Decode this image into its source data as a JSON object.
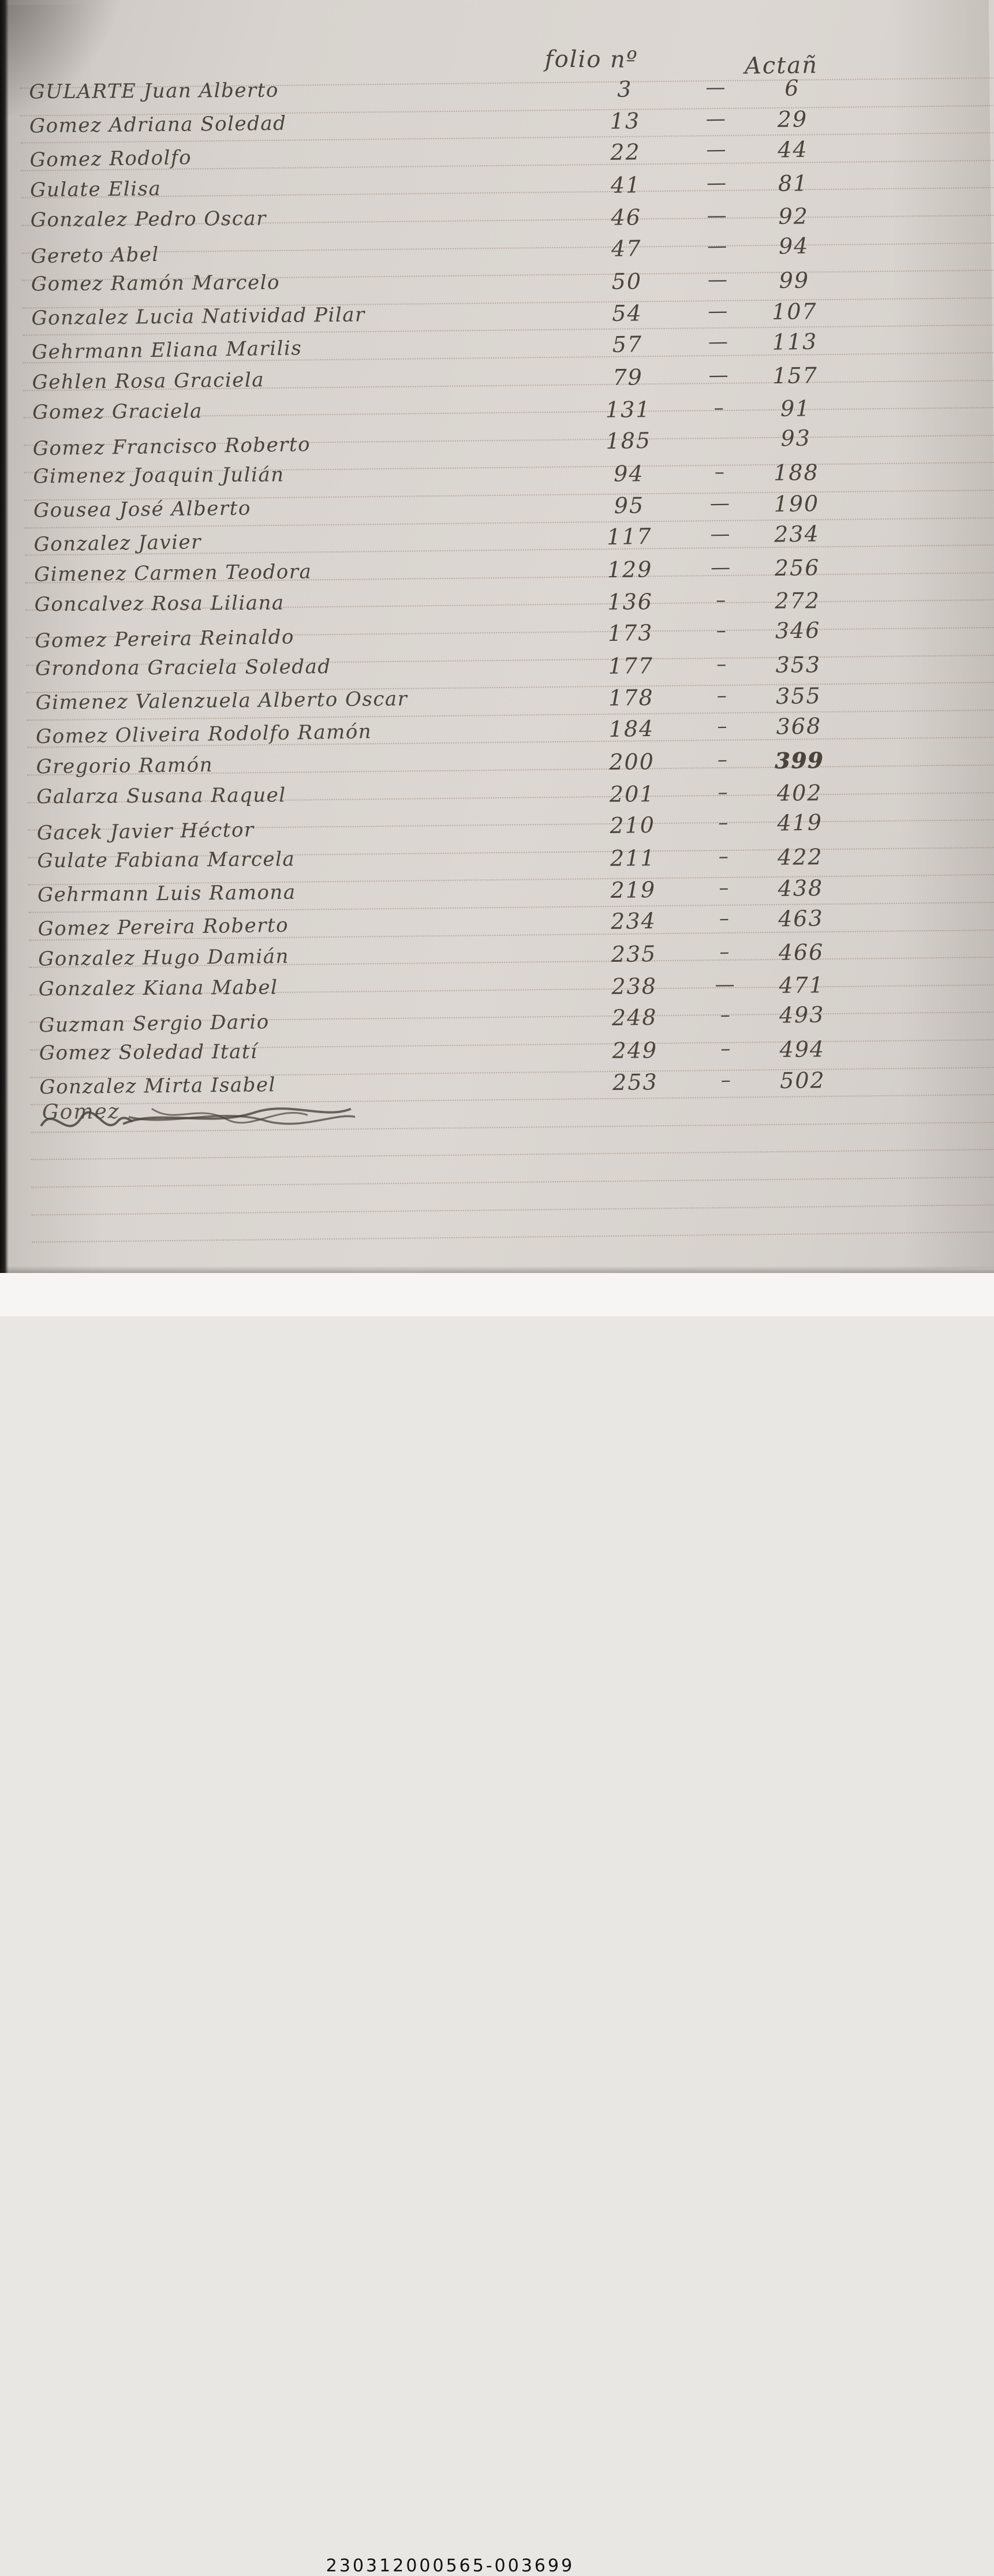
{
  "page": {
    "header": {
      "folio_label": "folio nº",
      "acta_label": "Actañ"
    },
    "entries": [
      {
        "name": "GULARTE Juan Alberto",
        "folio": "3",
        "dash": "—",
        "acta": "6"
      },
      {
        "name": "Gomez Adriana Soledad",
        "folio": "13",
        "dash": "—",
        "acta": "29"
      },
      {
        "name": "Gomez Rodolfo",
        "folio": "22",
        "dash": "—",
        "acta": "44"
      },
      {
        "name": "Gulate Elisa",
        "folio": "41",
        "dash": "—",
        "acta": "81"
      },
      {
        "name": "Gonzalez Pedro Oscar",
        "folio": "46",
        "dash": "—",
        "acta": "92"
      },
      {
        "name": "Gereto Abel",
        "folio": "47",
        "dash": "—",
        "acta": "94"
      },
      {
        "name": "Gomez Ramón Marcelo",
        "folio": "50",
        "dash": "—",
        "acta": "99"
      },
      {
        "name": "Gonzalez Lucia Natividad Pilar",
        "folio": "54",
        "dash": "—",
        "acta": "107"
      },
      {
        "name": "Gehrmann Eliana Marilis",
        "folio": "57",
        "dash": "—",
        "acta": "113"
      },
      {
        "name": "Gehlen Rosa Graciela",
        "folio": "79",
        "dash": "—",
        "acta": "157"
      },
      {
        "name": "Gomez Graciela",
        "folio": "131",
        "dash": "–",
        "acta": "91"
      },
      {
        "name": "Gomez Francisco Roberto",
        "folio": "185",
        "dash": "",
        "acta": "93"
      },
      {
        "name": "Gimenez Joaquin Julián",
        "folio": "94",
        "dash": "–",
        "acta": "188"
      },
      {
        "name": "Gousea José Alberto",
        "folio": "95",
        "dash": "—",
        "acta": "190"
      },
      {
        "name": "Gonzalez Javier",
        "folio": "117",
        "dash": "—",
        "acta": "234"
      },
      {
        "name": "Gimenez Carmen Teodora",
        "folio": "129",
        "dash": "—",
        "acta": "256"
      },
      {
        "name": "Goncalvez Rosa Liliana",
        "folio": "136",
        "dash": "–",
        "acta": "272"
      },
      {
        "name": "Gomez Pereira Reinaldo",
        "folio": "173",
        "dash": "–",
        "acta": "346"
      },
      {
        "name": "Grondona Graciela Soledad",
        "folio": "177",
        "dash": "–",
        "acta": "353"
      },
      {
        "name": "Gimenez Valenzuela Alberto Oscar",
        "folio": "178",
        "dash": "–",
        "acta": "355"
      },
      {
        "name": "Gomez Oliveira Rodolfo Ramón",
        "folio": "184",
        "dash": "–",
        "acta": "368"
      },
      {
        "name": "Gregorio Ramón",
        "folio": "200",
        "dash": "–",
        "acta": "399",
        "acta_style": "bold"
      },
      {
        "name": "Galarza Susana Raquel",
        "folio": "201",
        "dash": "–",
        "acta": "402"
      },
      {
        "name": "Gacek Javier Héctor",
        "folio": "210",
        "dash": "–",
        "acta": "419"
      },
      {
        "name": "Gulate Fabiana Marcela",
        "folio": "211",
        "dash": "–",
        "acta": "422"
      },
      {
        "name": "Gehrmann Luis Ramona",
        "folio": "219",
        "dash": "–",
        "acta": "438"
      },
      {
        "name": "Gomez Pereira Roberto",
        "folio": "234",
        "dash": "–",
        "acta": "463"
      },
      {
        "name": "Gonzalez Hugo Damián",
        "folio": "235",
        "dash": "–",
        "acta": "466"
      },
      {
        "name": "Gonzalez Kiana Mabel",
        "folio": "238",
        "dash": "—",
        "acta": "471"
      },
      {
        "name": "Guzman Sergio Dario",
        "folio": "248",
        "dash": "–",
        "acta": "493"
      },
      {
        "name": "Gomez Soledad Itatí",
        "folio": "249",
        "dash": "–",
        "acta": "494"
      },
      {
        "name": "Gonzalez Mirta Isabel",
        "folio": "253",
        "dash": "–",
        "acta": "502"
      }
    ],
    "crossed_out_entry": {
      "visible_fragment": "Gomez"
    },
    "footer_code": "230312000565-003699"
  }
}
